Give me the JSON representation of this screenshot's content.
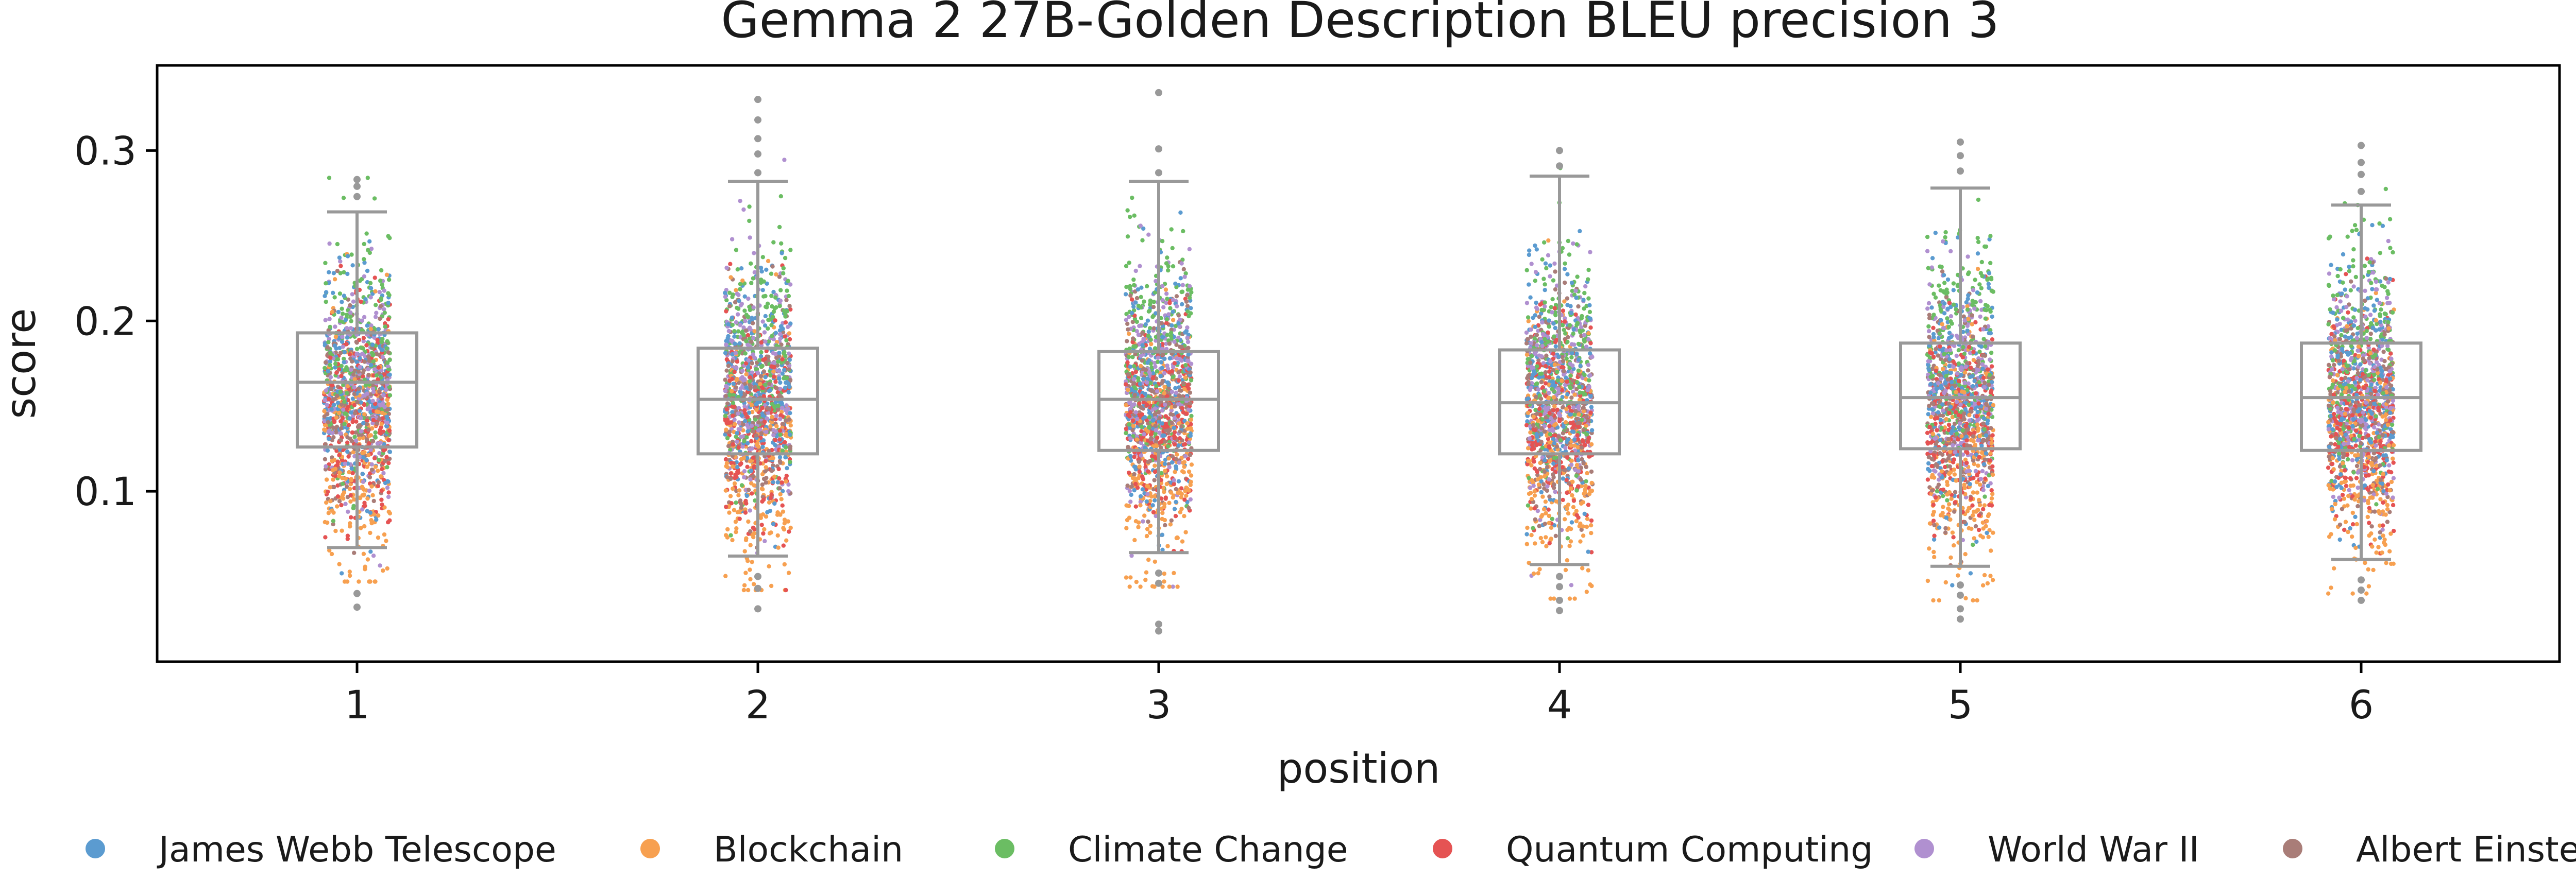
{
  "chart_data": {
    "type": "box",
    "title": "Gemma 2 27B-Golden Description BLEU precision 3",
    "xlabel": "position",
    "ylabel": "score",
    "categories": [
      "1",
      "2",
      "3",
      "4",
      "5",
      "6"
    ],
    "ylim": [
      0.0,
      0.35
    ],
    "yticks": [
      "0.1",
      "0.2",
      "0.3"
    ],
    "grid": false,
    "legend_position": "bottom",
    "boxes": [
      {
        "position": "1",
        "whisker_low": 0.067,
        "q1": 0.126,
        "median": 0.164,
        "q3": 0.193,
        "whisker_high": 0.264,
        "outliers": [
          0.032,
          0.04,
          0.273,
          0.279,
          0.283
        ]
      },
      {
        "position": "2",
        "whisker_low": 0.062,
        "q1": 0.122,
        "median": 0.154,
        "q3": 0.184,
        "whisker_high": 0.282,
        "outliers": [
          0.031,
          0.043,
          0.05,
          0.287,
          0.298,
          0.307,
          0.318,
          0.33
        ]
      },
      {
        "position": "3",
        "whisker_low": 0.064,
        "q1": 0.124,
        "median": 0.154,
        "q3": 0.182,
        "whisker_high": 0.282,
        "outliers": [
          0.018,
          0.022,
          0.046,
          0.052,
          0.287,
          0.301,
          0.334
        ]
      },
      {
        "position": "4",
        "whisker_low": 0.057,
        "q1": 0.122,
        "median": 0.152,
        "q3": 0.183,
        "whisker_high": 0.285,
        "outliers": [
          0.03,
          0.036,
          0.044,
          0.05,
          0.291,
          0.3
        ]
      },
      {
        "position": "5",
        "whisker_low": 0.056,
        "q1": 0.125,
        "median": 0.155,
        "q3": 0.187,
        "whisker_high": 0.278,
        "outliers": [
          0.025,
          0.031,
          0.039,
          0.045,
          0.288,
          0.297,
          0.305
        ]
      },
      {
        "position": "6",
        "whisker_low": 0.06,
        "q1": 0.124,
        "median": 0.155,
        "q3": 0.187,
        "whisker_high": 0.268,
        "outliers": [
          0.036,
          0.042,
          0.048,
          0.276,
          0.286,
          0.293,
          0.303
        ]
      }
    ],
    "series": [
      {
        "name": "James Webb Telescope",
        "color": "#5b9bd0",
        "center": 0.16,
        "spread": 0.036
      },
      {
        "name": "Blockchain",
        "color": "#f7a050",
        "center": 0.118,
        "spread": 0.04
      },
      {
        "name": "Climate Change",
        "color": "#6bbd63",
        "center": 0.18,
        "spread": 0.036
      },
      {
        "name": "Quantum Computing",
        "color": "#e55353",
        "center": 0.14,
        "spread": 0.03
      },
      {
        "name": "World War II",
        "color": "#b090d0",
        "center": 0.165,
        "spread": 0.034
      },
      {
        "name": "Albert Einstein",
        "color": "#a97d78",
        "center": 0.15,
        "spread": 0.03
      }
    ],
    "box_color": "#999999"
  }
}
